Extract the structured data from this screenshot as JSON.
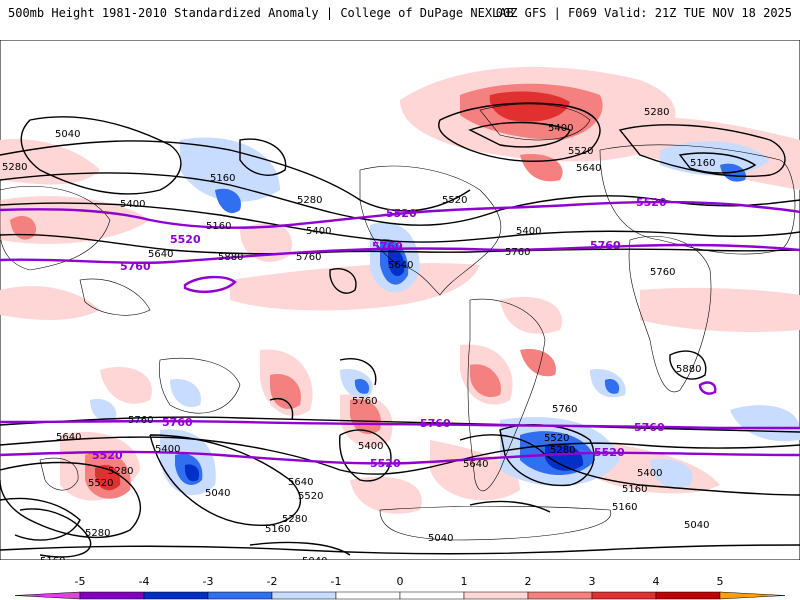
{
  "header": {
    "title": "500mb Height 1981-2010 Standardized Anomaly | College of DuPage NEXLAB",
    "run_info": "00Z GFS | F069 Valid: 21Z TUE NOV 18 2025"
  },
  "colors": {
    "anom_neg_5": "#e040e0",
    "anom_neg_4": "#8000c0",
    "anom_neg_3": "#0030c8",
    "anom_neg_2": "#3070f0",
    "anom_neg_1": "#c8dcff",
    "anom_pos_1": "#ffd6d6",
    "anom_pos_2": "#f48080",
    "anom_pos_3": "#e03030",
    "anom_pos_4": "#c00000",
    "anom_pos_5": "#ffa000",
    "contour": "#000000",
    "highlight_contour": "#9000d0",
    "coastline": "#000000"
  },
  "map": {
    "contour_labels": [
      {
        "id": "c1",
        "text": "5040"
      },
      {
        "id": "c2",
        "text": "5280"
      },
      {
        "id": "c3",
        "text": "5400"
      },
      {
        "id": "c4",
        "text": "5160"
      },
      {
        "id": "c5",
        "text": "5280"
      },
      {
        "id": "c6",
        "text": "5400"
      },
      {
        "id": "c7",
        "text": "5160"
      },
      {
        "id": "c8",
        "text": "5640"
      },
      {
        "id": "c9",
        "text": "5760"
      },
      {
        "id": "c10",
        "text": "5880"
      },
      {
        "id": "c11",
        "text": "5520"
      },
      {
        "id": "c12",
        "text": "5400"
      },
      {
        "id": "c13",
        "text": "5280"
      },
      {
        "id": "c14",
        "text": "5520"
      },
      {
        "id": "c15",
        "text": "5640"
      },
      {
        "id": "c16",
        "text": "5400"
      },
      {
        "id": "c17",
        "text": "5160"
      },
      {
        "id": "c18",
        "text": "5640"
      },
      {
        "id": "c19",
        "text": "5760"
      },
      {
        "id": "c20",
        "text": "5760"
      },
      {
        "id": "c21",
        "text": "5880"
      },
      {
        "id": "c22",
        "text": "5760"
      },
      {
        "id": "c23",
        "text": "5760"
      },
      {
        "id": "c24",
        "text": "5640"
      },
      {
        "id": "c25",
        "text": "5400"
      },
      {
        "id": "c26",
        "text": "5520"
      },
      {
        "id": "c27",
        "text": "5280"
      },
      {
        "id": "c28",
        "text": "5040"
      },
      {
        "id": "c29",
        "text": "5160"
      },
      {
        "id": "c30",
        "text": "5040"
      },
      {
        "id": "c31",
        "text": "5640"
      },
      {
        "id": "c32",
        "text": "5520"
      },
      {
        "id": "c33",
        "text": "5280"
      },
      {
        "id": "c34",
        "text": "5160"
      },
      {
        "id": "c35",
        "text": "5400"
      },
      {
        "id": "c36",
        "text": "5640"
      },
      {
        "id": "c37",
        "text": "5520"
      },
      {
        "id": "c38",
        "text": "5280"
      },
      {
        "id": "c39",
        "text": "5400"
      },
      {
        "id": "c40",
        "text": "5160"
      },
      {
        "id": "c41",
        "text": "5160"
      },
      {
        "id": "c42",
        "text": "5040"
      },
      {
        "id": "c43",
        "text": "5760"
      },
      {
        "id": "c44",
        "text": "5040"
      },
      {
        "id": "c45",
        "text": "5280"
      }
    ],
    "highlight_labels": [
      {
        "id": "h1",
        "text": "5520"
      },
      {
        "id": "h2",
        "text": "5520"
      },
      {
        "id": "h3",
        "text": "5520"
      },
      {
        "id": "h4",
        "text": "5760"
      },
      {
        "id": "h5",
        "text": "5760"
      },
      {
        "id": "h6",
        "text": "5760"
      },
      {
        "id": "h7",
        "text": "5760"
      },
      {
        "id": "h8",
        "text": "5760"
      },
      {
        "id": "h9",
        "text": "5760"
      },
      {
        "id": "h10",
        "text": "5520"
      },
      {
        "id": "h11",
        "text": "5520"
      },
      {
        "id": "h12",
        "text": "5520"
      }
    ]
  },
  "colorbar": {
    "ticks": [
      "-5",
      "-4",
      "-3",
      "-2",
      "-1",
      "0",
      "1",
      "2",
      "3",
      "4",
      "5"
    ]
  }
}
